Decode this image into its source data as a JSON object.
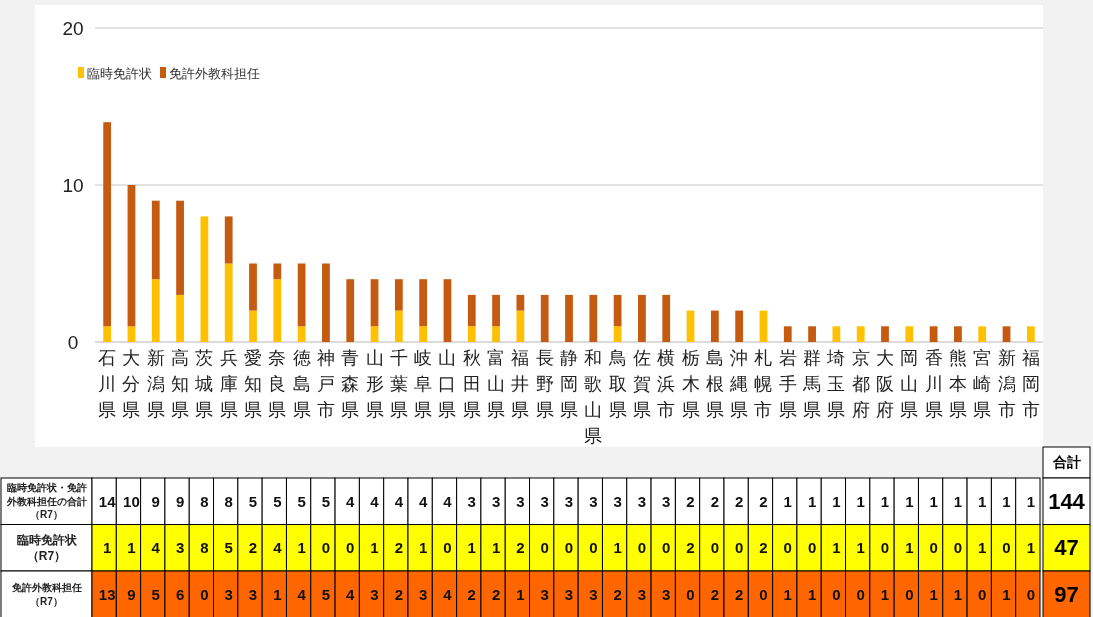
{
  "chart_data": {
    "type": "bar",
    "stacked": true,
    "categories": [
      "石川県",
      "大分県",
      "新潟県",
      "高知県",
      "茨城県",
      "兵庫県",
      "愛知県",
      "奈良県",
      "徳島県",
      "神戸市",
      "青森県",
      "山形県",
      "千葉県",
      "岐阜県",
      "山口県",
      "秋田県",
      "富山県",
      "福井県",
      "長野県",
      "静岡県",
      "和歌山県",
      "鳥取県",
      "佐賀県",
      "横浜市",
      "栃木県",
      "島根県",
      "沖縄県",
      "札幌市",
      "岩手県",
      "群馬県",
      "埼玉県",
      "京都府",
      "大阪府",
      "岡山県",
      "香川県",
      "熊本県",
      "宮崎県",
      "新潟市",
      "福岡市"
    ],
    "series": [
      {
        "name": "臨時免許状",
        "color": "#ffc000",
        "values": [
          1,
          1,
          4,
          3,
          8,
          5,
          2,
          4,
          1,
          0,
          0,
          1,
          2,
          1,
          0,
          1,
          1,
          2,
          0,
          0,
          0,
          1,
          0,
          0,
          2,
          0,
          0,
          2,
          0,
          0,
          1,
          1,
          0,
          1,
          0,
          0,
          1,
          0,
          1
        ]
      },
      {
        "name": "免許外教科担任",
        "color": "#c55a11",
        "values": [
          13,
          9,
          5,
          6,
          0,
          3,
          3,
          1,
          4,
          5,
          4,
          3,
          2,
          3,
          4,
          2,
          2,
          1,
          3,
          3,
          3,
          2,
          3,
          3,
          0,
          2,
          2,
          0,
          1,
          1,
          0,
          0,
          1,
          0,
          1,
          1,
          0,
          1,
          0
        ]
      }
    ],
    "data_labels": true,
    "annotations": [
      "臨時免許状・免許外教科担任の合計（R7）",
      "臨時免許状（R7）",
      "免許外教科担任（R7）",
      "合計",
      "144",
      "47",
      "97",
      "14",
      "10",
      "9",
      "9",
      "8",
      "8",
      "5",
      "5",
      "5",
      "5",
      "4",
      "4",
      "4",
      "4",
      "4",
      "3",
      "3",
      "3",
      "3",
      "3",
      "3",
      "3",
      "3",
      "3",
      "2",
      "2",
      "2",
      "2",
      "1",
      "1",
      "1",
      "1",
      "1",
      "1",
      "1",
      "1",
      "1",
      "1",
      "1"
    ],
    "ylim": [
      0,
      20
    ],
    "yticks": [
      0,
      10,
      20
    ],
    "grid": "y",
    "legend": "top left"
  }
}
